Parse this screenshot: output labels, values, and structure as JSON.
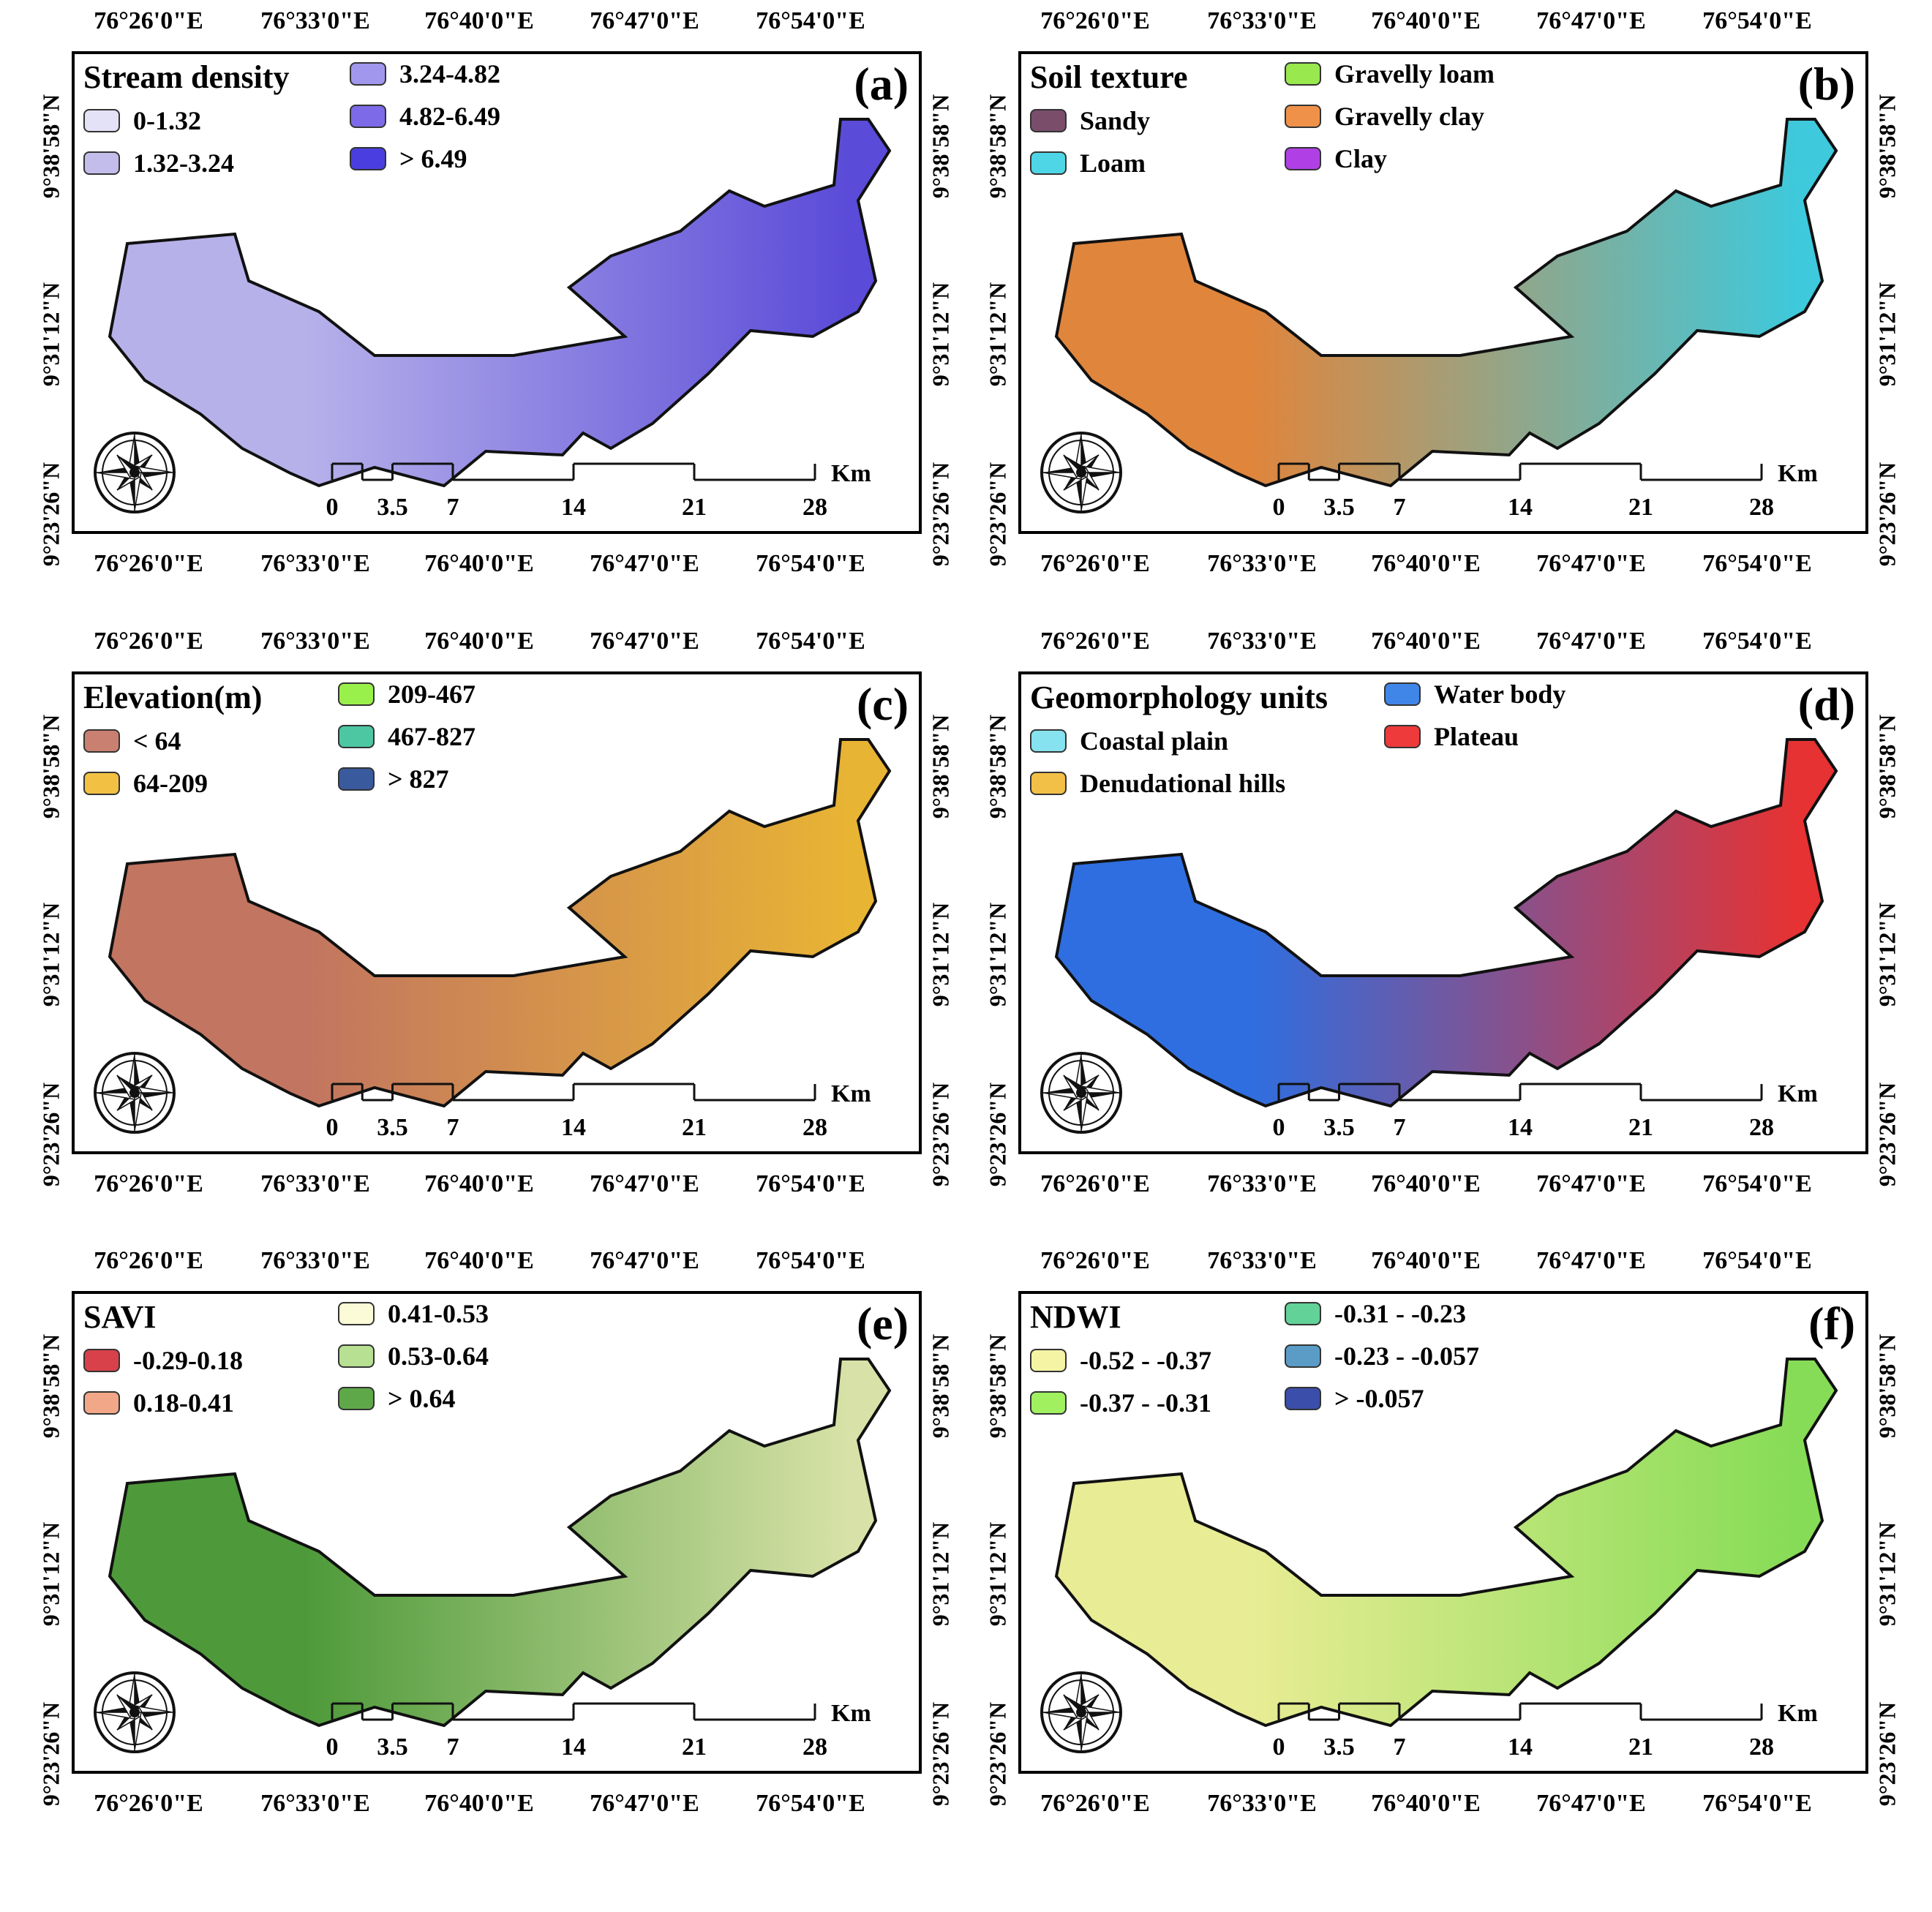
{
  "longitude_labels": [
    "76°26'0\"E",
    "76°33'0\"E",
    "76°40'0\"E",
    "76°47'0\"E",
    "76°54'0\"E"
  ],
  "latitude_labels": [
    "9°38'58\"N",
    "9°31'12\"N",
    "9°23'26\"N"
  ],
  "scale_bar": {
    "unit": "Km",
    "ticks": [
      "0",
      "3.5",
      "7",
      "14",
      "21",
      "28"
    ]
  },
  "panels": [
    {
      "id": "a",
      "label": "(a)",
      "title": "Stream density",
      "fill": "#b7b1ea",
      "fill_east": "#5a4bd8",
      "legend": [
        {
          "label": "0-1.32",
          "color": "#e4e2f6"
        },
        {
          "label": "1.32-3.24",
          "color": "#c3bdec"
        },
        {
          "label": "3.24-4.82",
          "color": "#a198ee"
        },
        {
          "label": "4.82-6.49",
          "color": "#7d6ae8"
        },
        {
          "label": "> 6.49",
          "color": "#4a3ee0"
        }
      ]
    },
    {
      "id": "b",
      "label": "(b)",
      "title": "Soil texture",
      "fill": "#e0853c",
      "fill_east": "#3ec9dc",
      "legend": [
        {
          "label": "Sandy",
          "color": "#7a4d6b"
        },
        {
          "label": "Loam",
          "color": "#4fd6e6"
        },
        {
          "label": "Gravelly loam",
          "color": "#98e84e"
        },
        {
          "label": "Gravelly clay",
          "color": "#f0914a"
        },
        {
          "label": "Clay",
          "color": "#b040e6"
        }
      ]
    },
    {
      "id": "c",
      "label": "(c)",
      "title": "Elevation(m)",
      "fill": "#c27560",
      "fill_east": "#e8b434",
      "legend": [
        {
          "label": "< 64",
          "color": "#c98070"
        },
        {
          "label": "64-209",
          "color": "#f2c144"
        },
        {
          "label": "209-467",
          "color": "#9af04a"
        },
        {
          "label": "467-827",
          "color": "#4cc7a2"
        },
        {
          "label": "> 827",
          "color": "#3a5a9e"
        }
      ]
    },
    {
      "id": "d",
      "label": "(d)",
      "title": "Geomorphology units",
      "fill": "#2f6ee0",
      "fill_east": "#e63232",
      "legend": [
        {
          "label": "Coastal plain",
          "color": "#86e2ee"
        },
        {
          "label": "Denudational hills",
          "color": "#f2c046"
        },
        {
          "label": "Water body",
          "color": "#3f86e8"
        },
        {
          "label": "Plateau",
          "color": "#ee3a3a"
        }
      ]
    },
    {
      "id": "e",
      "label": "(e)",
      "title": "SAVI",
      "fill": "#4e9a3a",
      "fill_east": "#d8e2a8",
      "legend": [
        {
          "label": "-0.29-0.18",
          "color": "#d8414a"
        },
        {
          "label": "0.18-0.41",
          "color": "#f2a888"
        },
        {
          "label": "0.41-0.53",
          "color": "#fbfbd8"
        },
        {
          "label": "0.53-0.64",
          "color": "#b8e092"
        },
        {
          "label": "> 0.64",
          "color": "#5fa84a"
        }
      ]
    },
    {
      "id": "f",
      "label": "(f)",
      "title": "NDWI",
      "fill": "#e8ec94",
      "fill_east": "#86dc56",
      "legend": [
        {
          "label": "-0.52 - -0.37",
          "color": "#f4f4a4"
        },
        {
          "label": "-0.37 - -0.31",
          "color": "#a0f060"
        },
        {
          "label": "-0.31 - -0.23",
          "color": "#62d298"
        },
        {
          "label": "-0.23 - -0.057",
          "color": "#5a9cc6"
        },
        {
          "label": "> -0.057",
          "color": "#3a4eaa"
        }
      ]
    }
  ]
}
